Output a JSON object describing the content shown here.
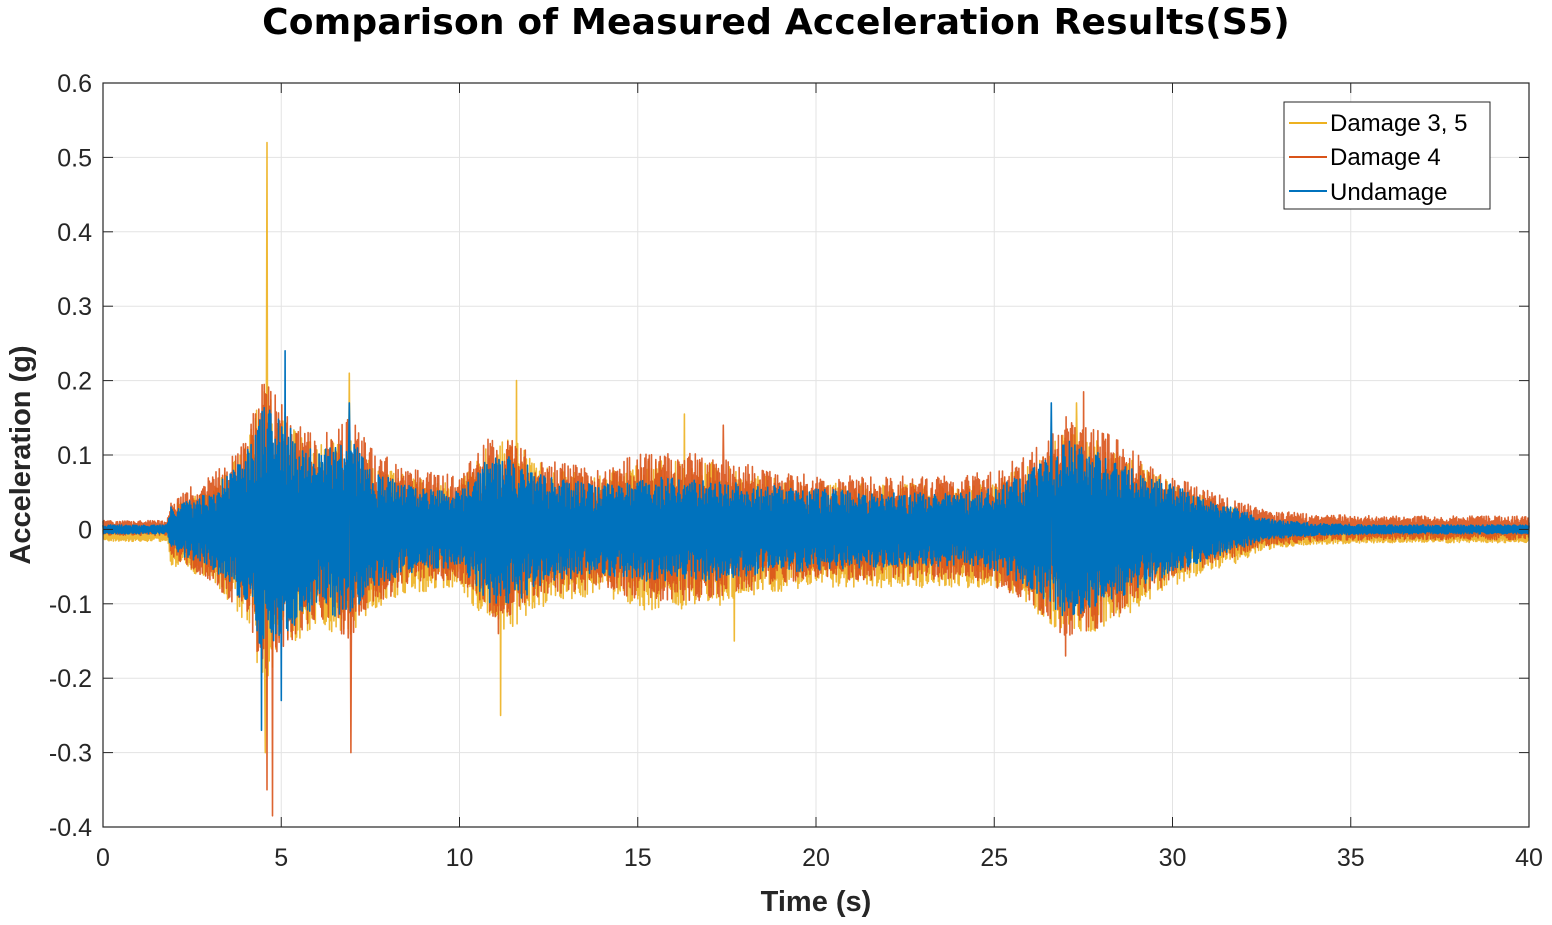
{
  "chart_data": {
    "type": "line",
    "title": "Comparison of Measured Acceleration Results(S5)",
    "xlabel": "Time (s)",
    "ylabel": "Acceleration (g)",
    "xlim": [
      0,
      40
    ],
    "ylim": [
      -0.4,
      0.6
    ],
    "xticks": [
      0,
      5,
      10,
      15,
      20,
      25,
      30,
      35,
      40
    ],
    "xtick_labels": [
      "0",
      "5",
      "10",
      "15",
      "20",
      "25",
      "30",
      "35",
      "40"
    ],
    "yticks": [
      0.6,
      0.5,
      0.4,
      0.3,
      0.2,
      0.1,
      0,
      -0.1,
      -0.2,
      -0.3,
      -0.4
    ],
    "ytick_labels": [
      "0.6",
      "0.5",
      "0.4",
      "0.3",
      "0.2",
      "0.1",
      "0",
      "-0.1",
      "-0.2",
      "-0.3",
      "-0.4"
    ],
    "grid": true,
    "legend": {
      "position": "top-right",
      "entries": [
        "Damage 3, 5",
        "Damage 4",
        "Undamage"
      ]
    },
    "envelope_times": [
      0,
      1.8,
      1.9,
      3,
      4,
      4.5,
      5,
      6,
      6.9,
      7.5,
      8.5,
      10,
      10.8,
      11.5,
      12.5,
      14,
      15,
      17,
      18.5,
      20,
      22,
      24,
      25,
      26,
      27,
      27.8,
      29,
      30,
      31,
      31.7,
      32.5,
      34,
      36,
      40
    ],
    "series": [
      {
        "name": "Damage 3, 5",
        "color": "#EDB120",
        "offset": -0.008,
        "envelope": [
          0.008,
          0.008,
          0.04,
          0.06,
          0.12,
          0.2,
          0.16,
          0.12,
          0.14,
          0.1,
          0.08,
          0.07,
          0.12,
          0.13,
          0.09,
          0.08,
          0.1,
          0.1,
          0.08,
          0.07,
          0.07,
          0.07,
          0.07,
          0.1,
          0.14,
          0.13,
          0.1,
          0.07,
          0.05,
          0.04,
          0.02,
          0.012,
          0.01,
          0.01
        ],
        "peaks": [
          {
            "t": 4.6,
            "value": 0.52
          },
          {
            "t": 4.55,
            "value": -0.3
          },
          {
            "t": 6.9,
            "value": 0.21
          },
          {
            "t": 11.6,
            "value": 0.2
          },
          {
            "t": 11.15,
            "value": -0.25
          },
          {
            "t": 16.3,
            "value": 0.155
          },
          {
            "t": 17.7,
            "value": -0.15
          },
          {
            "t": 27.3,
            "value": 0.17
          }
        ]
      },
      {
        "name": "Damage 4",
        "color": "#D95319",
        "offset": 0.002,
        "envelope": [
          0.01,
          0.01,
          0.04,
          0.07,
          0.12,
          0.2,
          0.17,
          0.12,
          0.15,
          0.11,
          0.08,
          0.07,
          0.12,
          0.12,
          0.09,
          0.08,
          0.1,
          0.1,
          0.08,
          0.07,
          0.07,
          0.07,
          0.08,
          0.1,
          0.15,
          0.14,
          0.1,
          0.07,
          0.05,
          0.04,
          0.025,
          0.018,
          0.016,
          0.016
        ],
        "peaks": [
          {
            "t": 4.75,
            "value": 0.3
          },
          {
            "t": 4.75,
            "value": -0.385
          },
          {
            "t": 4.6,
            "value": -0.35
          },
          {
            "t": 6.95,
            "value": -0.3
          },
          {
            "t": 11.1,
            "value": -0.14
          },
          {
            "t": 17.4,
            "value": 0.14
          },
          {
            "t": 27.0,
            "value": -0.17
          },
          {
            "t": 27.5,
            "value": 0.185
          }
        ]
      },
      {
        "name": "Undamage",
        "color": "#0072BD",
        "offset": 0,
        "envelope": [
          0.006,
          0.006,
          0.03,
          0.05,
          0.1,
          0.17,
          0.15,
          0.1,
          0.13,
          0.08,
          0.06,
          0.05,
          0.1,
          0.1,
          0.07,
          0.06,
          0.07,
          0.07,
          0.06,
          0.055,
          0.05,
          0.05,
          0.055,
          0.08,
          0.12,
          0.11,
          0.08,
          0.06,
          0.04,
          0.03,
          0.015,
          0.008,
          0.006,
          0.006
        ],
        "peaks": [
          {
            "t": 4.45,
            "value": 0.27
          },
          {
            "t": 5.1,
            "value": 0.24
          },
          {
            "t": 4.45,
            "value": -0.27
          },
          {
            "t": 5.0,
            "value": -0.23
          },
          {
            "t": 6.9,
            "value": 0.17
          },
          {
            "t": 26.6,
            "value": 0.17
          }
        ]
      }
    ]
  }
}
